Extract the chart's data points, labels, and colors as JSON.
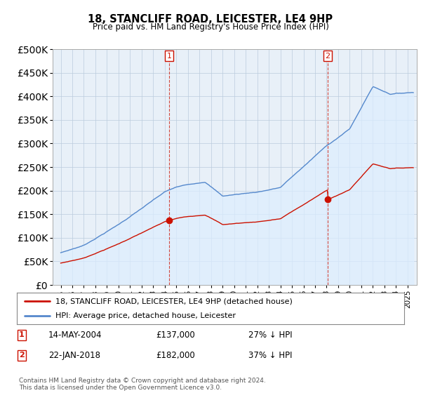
{
  "title": "18, STANCLIFF ROAD, LEICESTER, LE4 9HP",
  "subtitle": "Price paid vs. HM Land Registry's House Price Index (HPI)",
  "ylim": [
    0,
    500000
  ],
  "yticks": [
    0,
    50000,
    100000,
    150000,
    200000,
    250000,
    300000,
    350000,
    400000,
    450000,
    500000
  ],
  "hpi_color": "#5588cc",
  "hpi_fill": "#ddeeff",
  "price_color": "#cc1100",
  "vline_color": "#cc1100",
  "annotation1": {
    "label": "1",
    "date": "14-MAY-2004",
    "price": "£137,000",
    "pct": "27% ↓ HPI"
  },
  "annotation2": {
    "label": "2",
    "date": "22-JAN-2018",
    "price": "£182,000",
    "pct": "37% ↓ HPI"
  },
  "legend1": "18, STANCLIFF ROAD, LEICESTER, LE4 9HP (detached house)",
  "legend2": "HPI: Average price, detached house, Leicester",
  "footnote": "Contains HM Land Registry data © Crown copyright and database right 2024.\nThis data is licensed under the Open Government Licence v3.0.",
  "bg_color": "#e8f0f8",
  "plot_bg_color": "#ffffff"
}
